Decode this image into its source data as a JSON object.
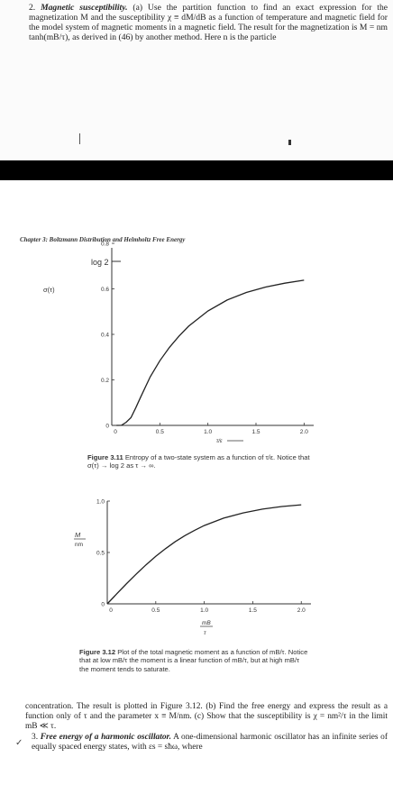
{
  "top_problem": {
    "number": "2.",
    "lead": "Magnetic susceptibility.",
    "text": "(a) Use the partition function to find an exact expression for the magnetization M and the susceptibility χ ≡ dM/dB as a function of temperature and magnetic field for the model system of magnetic moments in a magnetic field. The result for the magnetization is M = nm tanh(mB/τ), as derived in (46) by another method. Here n is the particle"
  },
  "chapter_header": "Chapter 3: Boltzmann Distribution and Helmholtz Free Energy",
  "figure_1": {
    "ylabel": "σ(τ)",
    "xlabel": "τ/ε",
    "log_label": "log 2",
    "y_ticks": [
      "0",
      "0.2",
      "0.4",
      "0.6",
      "0.8"
    ],
    "x_ticks": [
      "0",
      "0.5",
      "1.0",
      "1.5",
      "2.0"
    ],
    "caption_num": "Figure 3.11",
    "caption": "Entropy of a two-state system as a function of τ/ε. Notice that σ(τ) → log 2 as τ → ∞."
  },
  "figure_2": {
    "ylabel_top": "M",
    "ylabel_bottom": "nm",
    "xlabel_top": "mB",
    "xlabel_bottom": "τ",
    "y_ticks": [
      "0",
      "0.5",
      "1.0"
    ],
    "x_ticks": [
      "0",
      "0.5",
      "1.0",
      "1.5",
      "2.0"
    ],
    "caption_num": "Figure 3.12",
    "caption": "Plot of the total magnetic moment as a function of mB/τ. Notice that at low mB/τ the moment is a linear function of mB/τ, but at high mB/τ the moment tends to saturate."
  },
  "chart_data": [
    {
      "type": "line",
      "x": [
        0.05,
        0.1,
        0.15,
        0.2,
        0.25,
        0.3,
        0.4,
        0.5,
        0.6,
        0.7,
        0.8,
        1.0,
        1.2,
        1.4,
        1.6,
        1.8,
        2.0
      ],
      "series": [
        {
          "values": [
            0.0,
            0.0005,
            0.014,
            0.034,
            0.078,
            0.124,
            0.214,
            0.284,
            0.343,
            0.393,
            0.436,
            0.503,
            0.551,
            0.584,
            0.608,
            0.625,
            0.638
          ]
        }
      ],
      "title": "",
      "xlabel": "τ/ε",
      "ylabel": "σ(τ)",
      "xlim": [
        0,
        2.1
      ],
      "ylim": [
        0,
        0.8
      ],
      "reference_line": {
        "label": "log 2",
        "y": 0.693
      },
      "grid": false
    },
    {
      "type": "line",
      "x": [
        0.0,
        0.1,
        0.2,
        0.3,
        0.4,
        0.5,
        0.6,
        0.7,
        0.8,
        0.9,
        1.0,
        1.2,
        1.4,
        1.6,
        1.8,
        2.0
      ],
      "series": [
        {
          "values": [
            0.0,
            0.0997,
            0.197,
            0.291,
            0.38,
            0.462,
            0.537,
            0.604,
            0.664,
            0.716,
            0.762,
            0.834,
            0.885,
            0.922,
            0.947,
            0.964
          ]
        }
      ],
      "title": "",
      "xlabel": "mB/τ",
      "ylabel": "M/nm",
      "xlim": [
        0,
        2.1
      ],
      "ylim": [
        0,
        1.0
      ],
      "grid": false
    }
  ],
  "bottom_text": {
    "paragraph": "concentration. The result is plotted in Figure 3.12. (b) Find the free energy and express the result as a function only of τ and the parameter x ≡ M/nm. (c) Show that the susceptibility is χ = nm²/τ in the limit mB ≪ τ.",
    "item_number": "3.",
    "item_lead": "Free energy of a harmonic oscillator.",
    "item_text": "A one-dimensional harmonic oscillator has an infinite series of equally spaced energy states, with εs = sħω, where"
  }
}
